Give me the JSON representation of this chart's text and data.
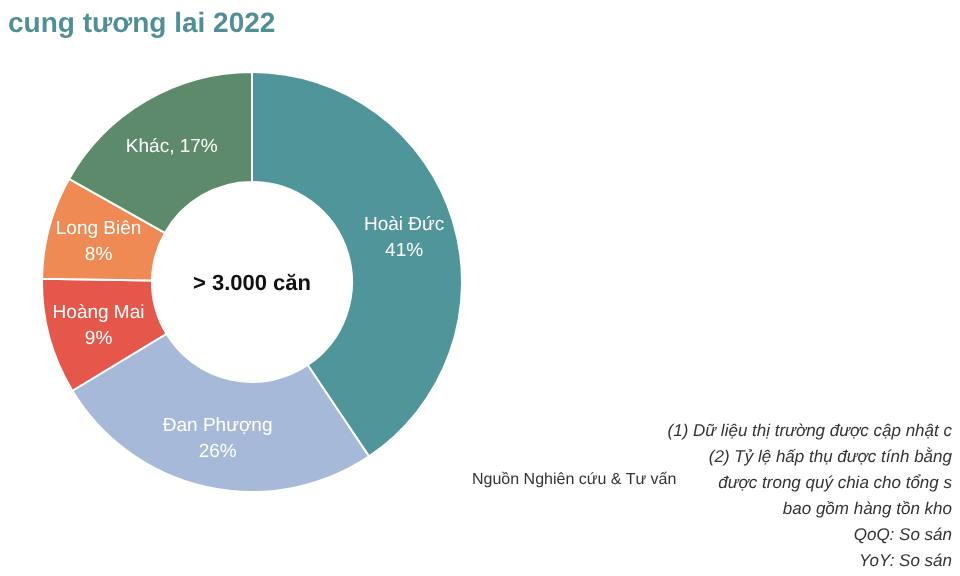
{
  "chart_data": {
    "type": "donut",
    "title": "cung tương lai 2022",
    "categories": [
      "Hoài Đức",
      "Đan Phượng",
      "Hoàng Mai",
      "Long Biên",
      "Khác"
    ],
    "values": [
      41,
      26,
      9,
      8,
      17
    ],
    "value_labels": [
      "41%",
      "26%",
      "9%",
      "8%",
      "17%"
    ],
    "colors": [
      "#4f9599",
      "#a7b9d8",
      "#e5574a",
      "#ef8a55",
      "#5d8a6a"
    ],
    "legend": false,
    "annotations": [
      "> 3.000 căn",
      "Nguồn Nghiên cứu & Tư vấn",
      "(1)  Dữ liệu thị trường được cập nhật c",
      "(2)  Tỷ lệ hấp thụ được tính bằng",
      "được trong quý chia cho tổng s",
      "bao gồm hàng tồn kho",
      "QoQ: So sán",
      "YoY: So sán"
    ]
  }
}
